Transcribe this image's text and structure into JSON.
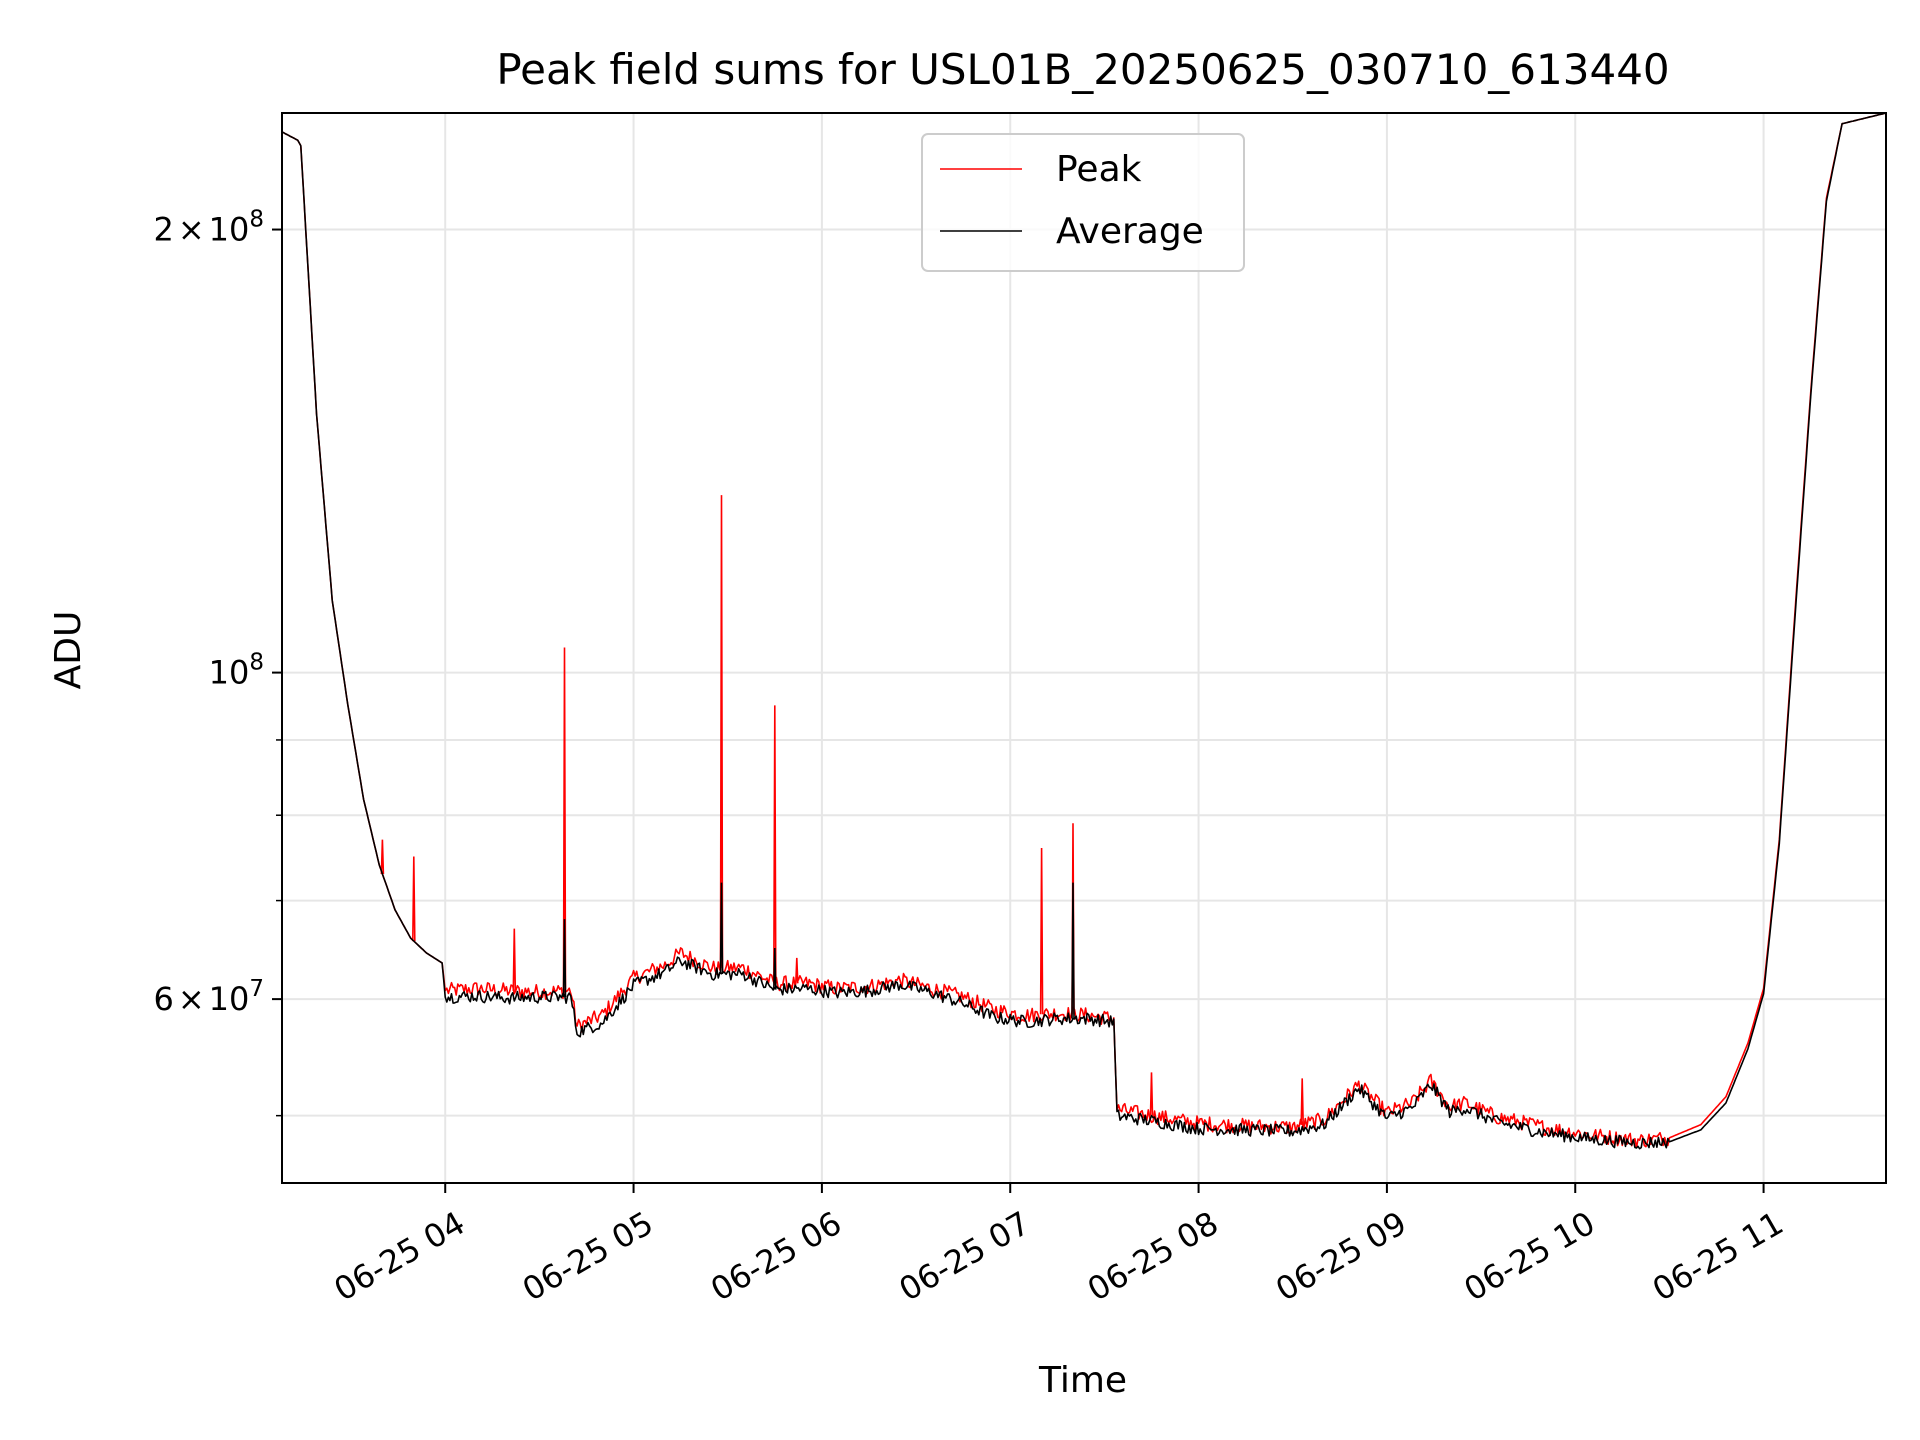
{
  "chart_data": {
    "type": "line",
    "title": "Peak field sums for USL01B_20250625_030710_613440",
    "xlabel": "Time",
    "ylabel": "ADU",
    "x_scale": "time",
    "y_scale": "log",
    "grid": true,
    "legend_position": "upper center",
    "xlim": [
      "2025-06-25 03:08",
      "2025-06-25 11:39"
    ],
    "ylim": [
      45000000,
      240000000
    ],
    "x_ticks": [
      {
        "value": "2025-06-25 04:00",
        "label": "06-25 04"
      },
      {
        "value": "2025-06-25 05:00",
        "label": "06-25 05"
      },
      {
        "value": "2025-06-25 06:00",
        "label": "06-25 06"
      },
      {
        "value": "2025-06-25 07:00",
        "label": "06-25 07"
      },
      {
        "value": "2025-06-25 08:00",
        "label": "06-25 08"
      },
      {
        "value": "2025-06-25 09:00",
        "label": "06-25 09"
      },
      {
        "value": "2025-06-25 10:00",
        "label": "06-25 10"
      },
      {
        "value": "2025-06-25 11:00",
        "label": "06-25 11"
      }
    ],
    "y_major_ticks": [
      {
        "value": 60000000,
        "base": "6",
        "exp": "7"
      },
      {
        "value": 100000000,
        "base": "",
        "exp": "8"
      },
      {
        "value": 200000000,
        "base": "2",
        "exp": "8"
      }
    ],
    "y_minor_ticks": [
      50000000,
      70000000,
      80000000,
      90000000
    ],
    "series": [
      {
        "name": "Peak",
        "color": "#ff0000",
        "points": [
          [
            "2025-06-25 03:08",
            233000000
          ],
          [
            "2025-06-25 03:13",
            230000000
          ],
          [
            "2025-06-25 03:14",
            228000000
          ],
          [
            "2025-06-25 03:19",
            150000000
          ],
          [
            "2025-06-25 03:24",
            112000000
          ],
          [
            "2025-06-25 03:29",
            95000000
          ],
          [
            "2025-06-25 03:34",
            82000000
          ],
          [
            "2025-06-25 03:39",
            74000000
          ],
          [
            "2025-06-25 03:44",
            69000000
          ],
          [
            "2025-06-25 03:49",
            66000000
          ],
          [
            "2025-06-25 03:54",
            64500000
          ],
          [
            "2025-06-25 03:59",
            63500000
          ],
          [
            "2025-06-25 04:00",
            60800000
          ],
          [
            "2025-06-25 04:10",
            61000000
          ],
          [
            "2025-06-25 04:20",
            60800000
          ],
          [
            "2025-06-25 04:30",
            60700000
          ],
          [
            "2025-06-25 04:40",
            60800000
          ],
          [
            "2025-06-25 04:42",
            57500000
          ],
          [
            "2025-06-25 04:50",
            58500000
          ],
          [
            "2025-06-25 05:00",
            62000000
          ],
          [
            "2025-06-25 05:10",
            63300000
          ],
          [
            "2025-06-25 05:15",
            64500000
          ],
          [
            "2025-06-25 05:25",
            63000000
          ],
          [
            "2025-06-25 05:35",
            63000000
          ],
          [
            "2025-06-25 05:45",
            61500000
          ],
          [
            "2025-06-25 05:55",
            61500000
          ],
          [
            "2025-06-25 06:05",
            61000000
          ],
          [
            "2025-06-25 06:15",
            61200000
          ],
          [
            "2025-06-25 06:25",
            61800000
          ],
          [
            "2025-06-25 06:35",
            61000000
          ],
          [
            "2025-06-25 06:45",
            60200000
          ],
          [
            "2025-06-25 06:55",
            59000000
          ],
          [
            "2025-06-25 07:05",
            58500000
          ],
          [
            "2025-06-25 07:15",
            58700000
          ],
          [
            "2025-06-25 07:25",
            58500000
          ],
          [
            "2025-06-25 07:33",
            58200000
          ],
          [
            "2025-06-25 07:34",
            50500000
          ],
          [
            "2025-06-25 07:45",
            50000000
          ],
          [
            "2025-06-25 08:00",
            49400000
          ],
          [
            "2025-06-25 08:15",
            49200000
          ],
          [
            "2025-06-25 08:30",
            49100000
          ],
          [
            "2025-06-25 08:40",
            49700000
          ],
          [
            "2025-06-25 08:51",
            52500000
          ],
          [
            "2025-06-25 09:00",
            50200000
          ],
          [
            "2025-06-25 09:08",
            51000000
          ],
          [
            "2025-06-25 09:14",
            52800000
          ],
          [
            "2025-06-25 09:20",
            50700000
          ],
          [
            "2025-06-25 09:25",
            51000000
          ],
          [
            "2025-06-25 09:35",
            49900000
          ],
          [
            "2025-06-25 09:50",
            49100000
          ],
          [
            "2025-06-25 10:05",
            48500000
          ],
          [
            "2025-06-25 10:20",
            48100000
          ],
          [
            "2025-06-25 10:30",
            48300000
          ],
          [
            "2025-06-25 10:40",
            49300000
          ],
          [
            "2025-06-25 10:48",
            51500000
          ],
          [
            "2025-06-25 10:55",
            56000000
          ],
          [
            "2025-06-25 11:00",
            61000000
          ],
          [
            "2025-06-25 11:05",
            77000000
          ],
          [
            "2025-06-25 11:10",
            110000000
          ],
          [
            "2025-06-25 11:15",
            155000000
          ],
          [
            "2025-06-25 11:20",
            210000000
          ],
          [
            "2025-06-25 11:25",
            236000000
          ],
          [
            "2025-06-25 11:39",
            240000000
          ]
        ],
        "spikes": [
          [
            "2025-06-25 04:22",
            67000000
          ],
          [
            "2025-06-25 04:38",
            104000000
          ],
          [
            "2025-06-25 05:28",
            132000000
          ],
          [
            "2025-06-25 05:45",
            95000000
          ],
          [
            "2025-06-25 05:52",
            64000000
          ],
          [
            "2025-06-25 07:10",
            76000000
          ],
          [
            "2025-06-25 07:20",
            79000000
          ],
          [
            "2025-06-25 07:45",
            53500000
          ],
          [
            "2025-06-25 08:33",
            53000000
          ],
          [
            "2025-06-25 03:40",
            77000000
          ],
          [
            "2025-06-25 03:50",
            75000000
          ]
        ]
      },
      {
        "name": "Average",
        "color": "#000000",
        "points": [
          [
            "2025-06-25 03:08",
            233000000
          ],
          [
            "2025-06-25 03:13",
            230000000
          ],
          [
            "2025-06-25 03:14",
            228000000
          ],
          [
            "2025-06-25 03:19",
            150000000
          ],
          [
            "2025-06-25 03:24",
            112000000
          ],
          [
            "2025-06-25 03:29",
            95000000
          ],
          [
            "2025-06-25 03:34",
            82000000
          ],
          [
            "2025-06-25 03:39",
            74000000
          ],
          [
            "2025-06-25 03:44",
            69000000
          ],
          [
            "2025-06-25 03:49",
            66000000
          ],
          [
            "2025-06-25 03:54",
            64500000
          ],
          [
            "2025-06-25 03:59",
            63500000
          ],
          [
            "2025-06-25 04:00",
            60200000
          ],
          [
            "2025-06-25 04:10",
            60300000
          ],
          [
            "2025-06-25 04:20",
            60100000
          ],
          [
            "2025-06-25 04:30",
            60200000
          ],
          [
            "2025-06-25 04:40",
            60200000
          ],
          [
            "2025-06-25 04:42",
            57000000
          ],
          [
            "2025-06-25 04:50",
            57800000
          ],
          [
            "2025-06-25 05:00",
            61300000
          ],
          [
            "2025-06-25 05:10",
            62600000
          ],
          [
            "2025-06-25 05:15",
            63700000
          ],
          [
            "2025-06-25 05:25",
            62400000
          ],
          [
            "2025-06-25 05:35",
            62400000
          ],
          [
            "2025-06-25 05:45",
            60900000
          ],
          [
            "2025-06-25 05:55",
            61000000
          ],
          [
            "2025-06-25 06:05",
            60600000
          ],
          [
            "2025-06-25 06:15",
            60800000
          ],
          [
            "2025-06-25 06:25",
            61400000
          ],
          [
            "2025-06-25 06:35",
            60600000
          ],
          [
            "2025-06-25 06:45",
            59600000
          ],
          [
            "2025-06-25 06:55",
            58300000
          ],
          [
            "2025-06-25 07:05",
            57900000
          ],
          [
            "2025-06-25 07:15",
            58200000
          ],
          [
            "2025-06-25 07:25",
            58200000
          ],
          [
            "2025-06-25 07:33",
            57900000
          ],
          [
            "2025-06-25 07:34",
            50000000
          ],
          [
            "2025-06-25 07:45",
            49600000
          ],
          [
            "2025-06-25 08:00",
            49000000
          ],
          [
            "2025-06-25 08:15",
            48900000
          ],
          [
            "2025-06-25 08:30",
            48800000
          ],
          [
            "2025-06-25 08:40",
            49300000
          ],
          [
            "2025-06-25 08:51",
            52200000
          ],
          [
            "2025-06-25 09:00",
            49800000
          ],
          [
            "2025-06-25 09:08",
            50600000
          ],
          [
            "2025-06-25 09:14",
            52500000
          ],
          [
            "2025-06-25 09:20",
            50300000
          ],
          [
            "2025-06-25 09:25",
            50600000
          ],
          [
            "2025-06-25 09:35",
            49500000
          ],
          [
            "2025-06-25 09:50",
            48700000
          ],
          [
            "2025-06-25 10:05",
            48200000
          ],
          [
            "2025-06-25 10:20",
            47900000
          ],
          [
            "2025-06-25 10:30",
            48000000
          ],
          [
            "2025-06-25 10:40",
            48900000
          ],
          [
            "2025-06-25 10:48",
            51000000
          ],
          [
            "2025-06-25 10:55",
            55500000
          ],
          [
            "2025-06-25 11:00",
            60500000
          ],
          [
            "2025-06-25 11:05",
            76500000
          ],
          [
            "2025-06-25 11:10",
            109000000
          ],
          [
            "2025-06-25 11:15",
            154000000
          ],
          [
            "2025-06-25 11:20",
            209000000
          ],
          [
            "2025-06-25 11:25",
            236000000
          ],
          [
            "2025-06-25 11:39",
            240000000
          ]
        ],
        "spikes": [
          [
            "2025-06-25 04:38",
            68000000
          ],
          [
            "2025-06-25 05:28",
            72000000
          ],
          [
            "2025-06-25 05:45",
            65000000
          ],
          [
            "2025-06-25 07:20",
            72000000
          ]
        ]
      }
    ]
  }
}
